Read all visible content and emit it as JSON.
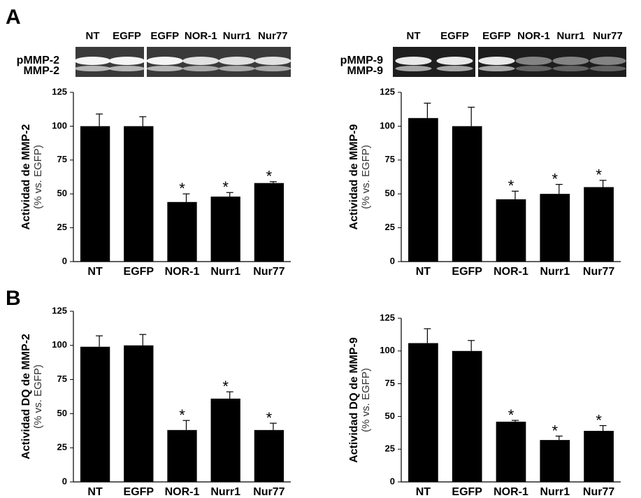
{
  "panel_labels": [
    "A",
    "B"
  ],
  "gels": [
    {
      "lanes": [
        "NT",
        "EGFP",
        "EGFP",
        "NOR-1",
        "Nurr1",
        "Nur77"
      ],
      "bands": [
        "pMMP-2",
        "MMP-2"
      ]
    },
    {
      "lanes": [
        "NT",
        "EGFP",
        "EGFP",
        "NOR-1",
        "Nurr1",
        "Nur77"
      ],
      "bands": [
        "pMMP-9",
        "MMP-9"
      ]
    }
  ],
  "chart_data": [
    {
      "type": "bar",
      "y_label": "Actividad de MMP-2",
      "y_sublabel": "(% vs. EGFP)",
      "categories": [
        "NT",
        "EGFP",
        "NOR-1",
        "Nurr1",
        "Nur77"
      ],
      "values": [
        100,
        100,
        44,
        48,
        58
      ],
      "errors": [
        9,
        7,
        6,
        3,
        1
      ],
      "significance": [
        null,
        null,
        "*",
        "*",
        "*"
      ],
      "color": "#000000",
      "ylim": [
        0,
        125
      ],
      "yticks": [
        0,
        25,
        50,
        75,
        100,
        125
      ]
    },
    {
      "type": "bar",
      "y_label": "Actividad de MMP-9",
      "y_sublabel": "(% vs. EGFP)",
      "categories": [
        "NT",
        "EGFP",
        "NOR-1",
        "Nurr1",
        "Nur77"
      ],
      "values": [
        106,
        100,
        46,
        50,
        55
      ],
      "errors": [
        11,
        14,
        6,
        7,
        5
      ],
      "significance": [
        null,
        null,
        "*",
        "*",
        "*"
      ],
      "color": "#000000",
      "ylim": [
        0,
        125
      ],
      "yticks": [
        0,
        25,
        50,
        75,
        100,
        125
      ]
    },
    {
      "type": "bar",
      "y_label": "Actividad DQ de MMP-2",
      "y_sublabel": "(% vs. EGFP)",
      "categories": [
        "NT",
        "EGFP",
        "NOR-1",
        "Nurr1",
        "Nur77"
      ],
      "values": [
        99,
        100,
        38,
        61,
        38
      ],
      "errors": [
        8,
        8,
        7,
        5,
        5
      ],
      "significance": [
        null,
        null,
        "*",
        "*",
        "*"
      ],
      "color": "#000000",
      "ylim": [
        0,
        125
      ],
      "yticks": [
        0,
        25,
        50,
        75,
        100,
        125
      ]
    },
    {
      "type": "bar",
      "y_label": "Actividad DQ de MMP-9",
      "y_sublabel": "(% vs. EGFP)",
      "categories": [
        "NT",
        "EGFP",
        "NOR-1",
        "Nurr1",
        "Nur77"
      ],
      "values": [
        106,
        100,
        46,
        32,
        39
      ],
      "errors": [
        11,
        8,
        1,
        3,
        4
      ],
      "significance": [
        null,
        null,
        "*",
        "*",
        "*"
      ],
      "color": "#000000",
      "ylim": [
        0,
        125
      ],
      "yticks": [
        0,
        25,
        50,
        75,
        100,
        125
      ]
    }
  ]
}
